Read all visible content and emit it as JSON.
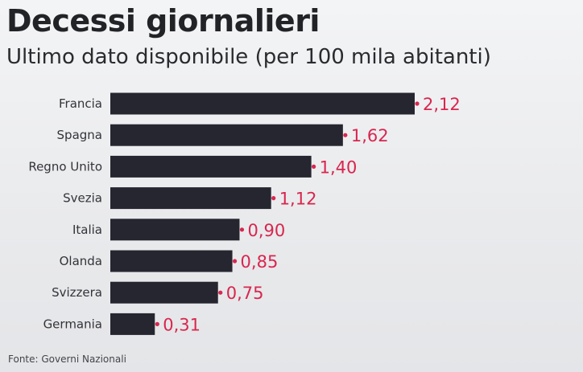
{
  "chart_data": {
    "type": "bar",
    "orientation": "horizontal",
    "title": "Decessi giornalieri",
    "subtitle": "Ultimo dato disponibile (per 100 mila abitanti)",
    "categories": [
      "Francia",
      "Spagna",
      "Regno Unito",
      "Svezia",
      "Italia",
      "Olanda",
      "Svizzera",
      "Germania"
    ],
    "values": [
      2.12,
      1.62,
      1.4,
      1.12,
      0.9,
      0.85,
      0.75,
      0.31
    ],
    "value_labels": [
      "2,12",
      "1,62",
      "1,40",
      "1,12",
      "0,90",
      "0,85",
      "0,75",
      "0,31"
    ],
    "xlim": [
      0,
      2.12
    ],
    "grid": false,
    "bar_color": "#262630",
    "label_color": "#d8264f",
    "source": "Fonte: Governi Nazionali"
  }
}
